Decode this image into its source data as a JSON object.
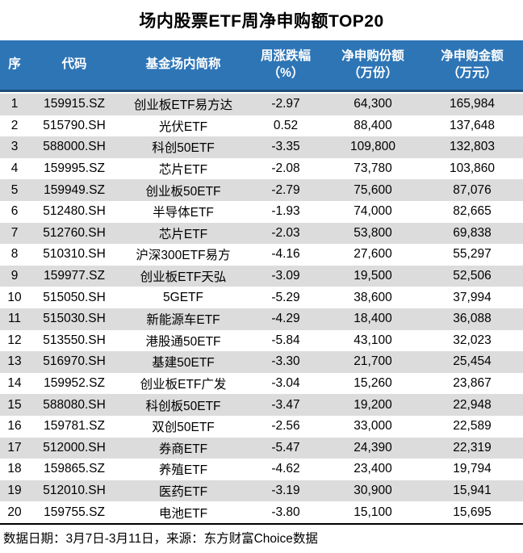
{
  "title": "场内股票ETF周净申购额TOP20",
  "footer_note": "数据日期：3月7日-3月11日，来源：东方财富Choice数据",
  "colors": {
    "header_bg": "#2E75B6",
    "header_border": "#1F4E79",
    "alt_row_bg": "#DCDCDC",
    "text": "#000000",
    "header_text": "#FFFFFF"
  },
  "chart_data": {
    "type": "table",
    "title": "场内股票ETF周净申购额TOP20",
    "source_note": "数据日期：3月7日-3月11日，来源：东方财富Choice数据",
    "columns": [
      {
        "label": "序",
        "sub": ""
      },
      {
        "label": "代码",
        "sub": ""
      },
      {
        "label": "基金场内简称",
        "sub": ""
      },
      {
        "label": "周涨跌幅",
        "sub": "（%）"
      },
      {
        "label": "净申购份额",
        "sub": "（万份）"
      },
      {
        "label": "净申购金额",
        "sub": "（万元）"
      }
    ],
    "rows": [
      [
        "1",
        "159915.SZ",
        "创业板ETF易方达",
        "-2.97",
        "64,300",
        "165,984"
      ],
      [
        "2",
        "515790.SH",
        "光伏ETF",
        "0.52",
        "88,400",
        "137,648"
      ],
      [
        "3",
        "588000.SH",
        "科创50ETF",
        "-3.35",
        "109,800",
        "132,803"
      ],
      [
        "4",
        "159995.SZ",
        "芯片ETF",
        "-2.08",
        "73,780",
        "103,860"
      ],
      [
        "5",
        "159949.SZ",
        "创业板50ETF",
        "-2.79",
        "75,600",
        "87,076"
      ],
      [
        "6",
        "512480.SH",
        "半导体ETF",
        "-1.93",
        "74,000",
        "82,665"
      ],
      [
        "7",
        "512760.SH",
        "芯片ETF",
        "-2.03",
        "53,800",
        "69,838"
      ],
      [
        "8",
        "510310.SH",
        "沪深300ETF易方",
        "-4.16",
        "27,600",
        "55,297"
      ],
      [
        "9",
        "159977.SZ",
        "创业板ETF天弘",
        "-3.09",
        "19,500",
        "52,506"
      ],
      [
        "10",
        "515050.SH",
        "5GETF",
        "-5.29",
        "38,600",
        "37,994"
      ],
      [
        "11",
        "515030.SH",
        "新能源车ETF",
        "-4.29",
        "18,400",
        "36,088"
      ],
      [
        "12",
        "513550.SH",
        "港股通50ETF",
        "-5.84",
        "43,100",
        "32,023"
      ],
      [
        "13",
        "516970.SH",
        "基建50ETF",
        "-3.30",
        "21,700",
        "25,454"
      ],
      [
        "14",
        "159952.SZ",
        "创业板ETF广发",
        "-3.04",
        "15,260",
        "23,867"
      ],
      [
        "15",
        "588080.SH",
        "科创板50ETF",
        "-3.47",
        "19,200",
        "22,948"
      ],
      [
        "16",
        "159781.SZ",
        "双创50ETF",
        "-2.56",
        "33,000",
        "22,589"
      ],
      [
        "17",
        "512000.SH",
        "券商ETF",
        "-5.47",
        "24,390",
        "22,319"
      ],
      [
        "18",
        "159865.SZ",
        "养殖ETF",
        "-4.62",
        "23,400",
        "19,794"
      ],
      [
        "19",
        "512010.SH",
        "医药ETF",
        "-3.19",
        "30,900",
        "15,941"
      ],
      [
        "20",
        "159755.SZ",
        "电池ETF",
        "-3.80",
        "15,100",
        "15,695"
      ]
    ]
  }
}
